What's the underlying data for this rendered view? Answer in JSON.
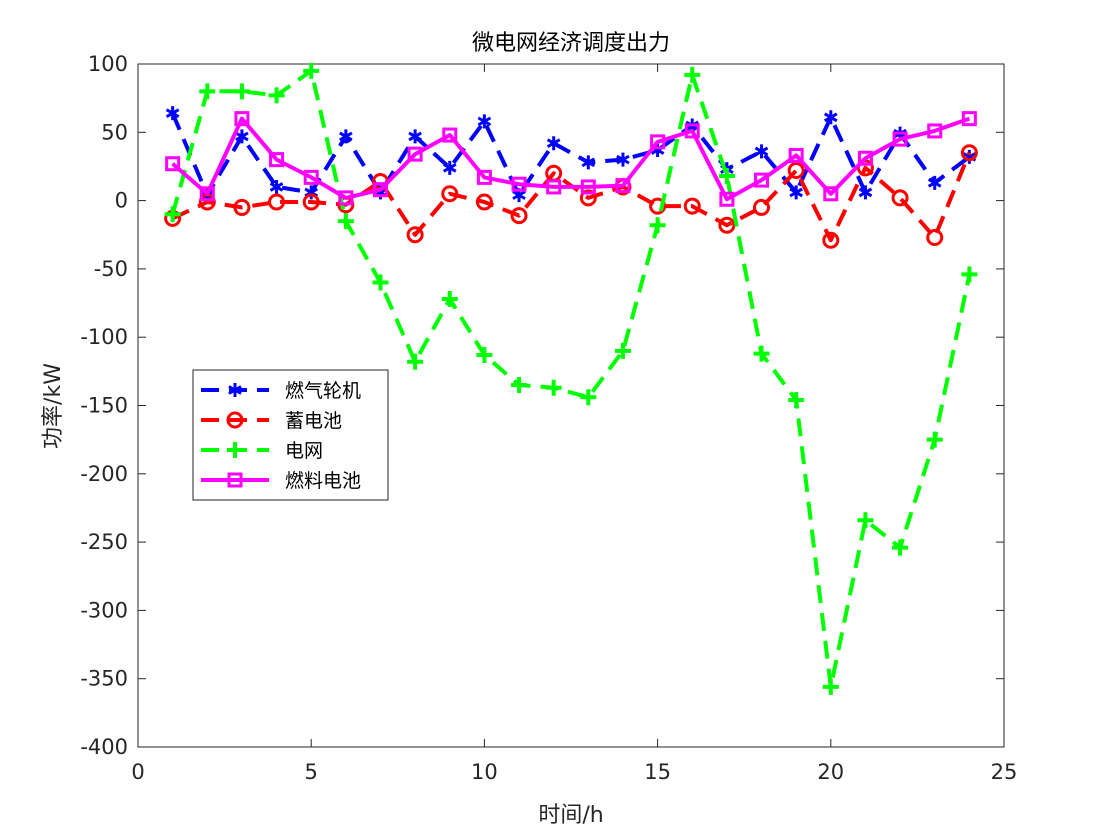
{
  "chart_data": {
    "type": "line",
    "title": "微电网经济调度出力",
    "xlabel": "时间/h",
    "ylabel": "功率/kW",
    "xlim": [
      0,
      25
    ],
    "ylim": [
      -400,
      100
    ],
    "xticks": [
      0,
      5,
      10,
      15,
      20,
      25
    ],
    "yticks": [
      -400,
      -350,
      -300,
      -250,
      -200,
      -150,
      -100,
      -50,
      0,
      50,
      100
    ],
    "grid": false,
    "legend_position": "middle-left",
    "x": [
      1,
      2,
      3,
      4,
      5,
      6,
      7,
      8,
      9,
      10,
      11,
      12,
      13,
      14,
      15,
      16,
      17,
      18,
      19,
      20,
      21,
      22,
      23,
      24
    ],
    "series": [
      {
        "name": "燃气轮机",
        "color": "#0000ff",
        "marker": "asterisk",
        "line": "dashed",
        "values": [
          64,
          4,
          47,
          10,
          6,
          47,
          6,
          47,
          24,
          58,
          4,
          42,
          28,
          30,
          37,
          55,
          23,
          36,
          6,
          61,
          6,
          49,
          13,
          32
        ]
      },
      {
        "name": "蓄电池",
        "color": "#ff0000",
        "marker": "circle",
        "line": "dashed",
        "values": [
          -13,
          -1,
          -5,
          -1,
          -1,
          -3,
          14,
          -25,
          5,
          -1,
          -11,
          20,
          2,
          10,
          -4,
          -4,
          -18,
          -5,
          22,
          -29,
          24,
          2,
          -27,
          35
        ]
      },
      {
        "name": "电网",
        "color": "#00ff00",
        "marker": "plus",
        "line": "dashed",
        "values": [
          -10,
          80,
          80,
          77,
          95,
          -15,
          -60,
          -118,
          -72,
          -113,
          -135,
          -137,
          -144,
          -110,
          -18,
          92,
          18,
          -112,
          -146,
          -356,
          -234,
          -254,
          -175,
          -54
        ]
      },
      {
        "name": "燃料电池",
        "color": "#ff00ff",
        "marker": "square",
        "line": "solid",
        "values": [
          27,
          5,
          60,
          30,
          17,
          2,
          8,
          34,
          48,
          17,
          12,
          10,
          10,
          11,
          43,
          51,
          1,
          15,
          33,
          5,
          31,
          45,
          51,
          60
        ]
      }
    ]
  }
}
